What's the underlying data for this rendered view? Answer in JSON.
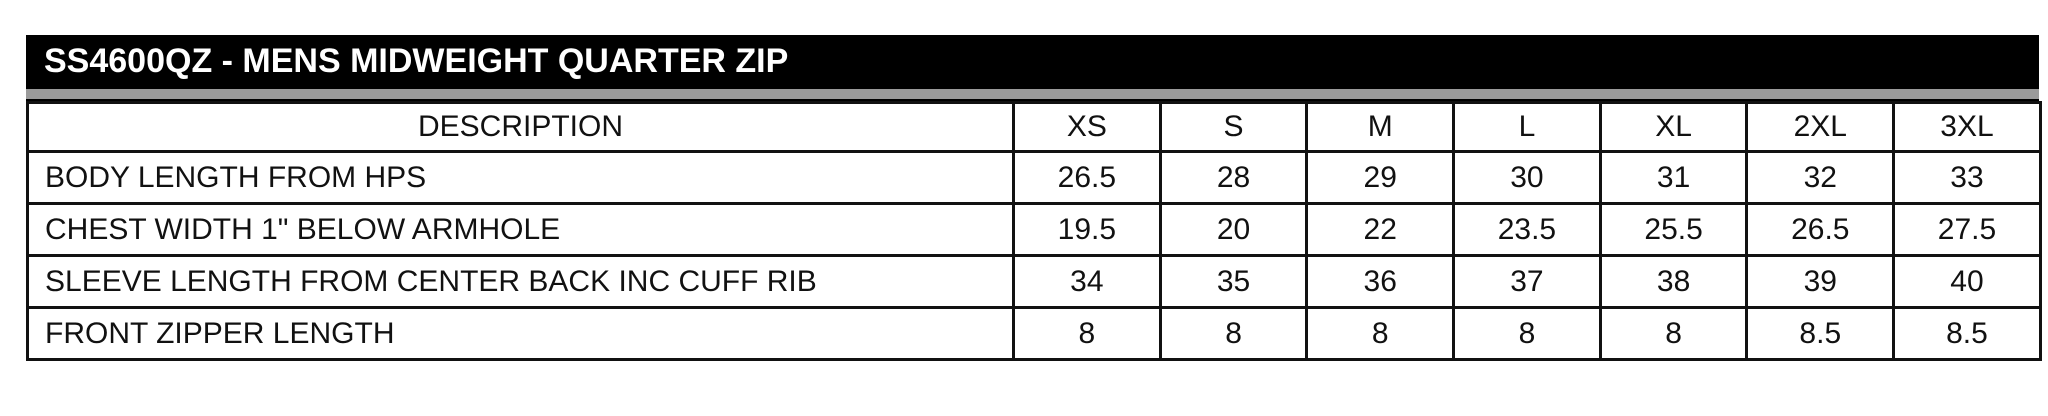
{
  "title": "SS4600QZ - MENS MIDWEIGHT QUARTER ZIP",
  "headers": [
    "DESCRIPTION",
    "XS",
    "S",
    "M",
    "L",
    "XL",
    "2XL",
    "3XL"
  ],
  "rows": [
    {
      "label": "BODY LENGTH FROM HPS",
      "values": [
        "26.5",
        "28",
        "29",
        "30",
        "31",
        "32",
        "33"
      ]
    },
    {
      "label": "CHEST WIDTH 1\" BELOW ARMHOLE",
      "values": [
        "19.5",
        "20",
        "22",
        "23.5",
        "25.5",
        "26.5",
        "27.5"
      ]
    },
    {
      "label": "SLEEVE LENGTH FROM CENTER BACK INC CUFF RIB",
      "values": [
        "34",
        "35",
        "36",
        "37",
        "38",
        "39",
        "40"
      ]
    },
    {
      "label": "FRONT ZIPPER LENGTH",
      "values": [
        "8",
        "8",
        "8",
        "8",
        "8",
        "8.5",
        "8.5"
      ]
    }
  ],
  "colors": {
    "title_bg": "#000000",
    "band": "#9a9a9a",
    "border": "#111111"
  }
}
